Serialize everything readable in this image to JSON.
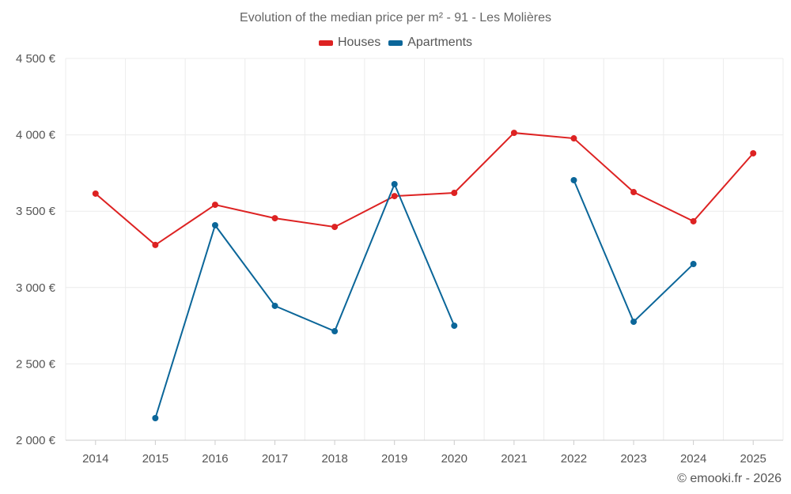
{
  "chart_data": {
    "type": "line",
    "title": "Evolution of the median price per m² - 91 - Les Molières",
    "xlabel": "",
    "ylabel": "",
    "categories": [
      "2014",
      "2015",
      "2016",
      "2017",
      "2018",
      "2019",
      "2020",
      "2021",
      "2022",
      "2023",
      "2024",
      "2025"
    ],
    "ylim": [
      2000,
      4500
    ],
    "yticks": [
      2000,
      2500,
      3000,
      3500,
      4000,
      4500
    ],
    "ytick_labels": [
      "2 000 €",
      "2 500 €",
      "3 000 €",
      "3 500 €",
      "4 000 €",
      "4 500 €"
    ],
    "grid": true,
    "legend_position": "top-center",
    "series": [
      {
        "name": "Houses",
        "color": "#dd2222",
        "values": [
          3615,
          3279,
          3542,
          3454,
          3397,
          3599,
          3620,
          4013,
          3977,
          3625,
          3434,
          3879
        ]
      },
      {
        "name": "Apartments",
        "color": "#0b6699",
        "values": [
          null,
          2145,
          3408,
          2880,
          2714,
          3677,
          2750,
          null,
          3703,
          2776,
          3154,
          null
        ]
      }
    ]
  },
  "credit": "© emooki.fr - 2026"
}
